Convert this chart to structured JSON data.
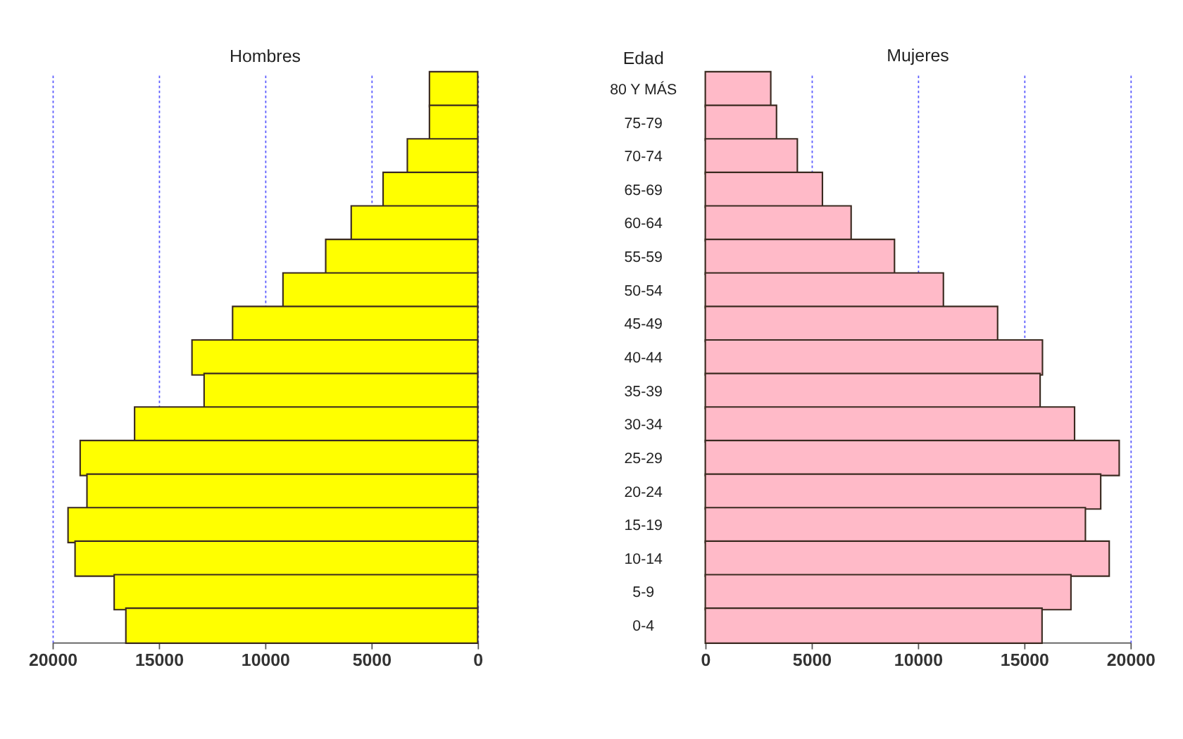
{
  "chart_data": [
    {
      "type": "bar",
      "orientation": "horizontal",
      "title": "Hombres",
      "categories": [
        null,
        null,
        null,
        null,
        null,
        null,
        null,
        null,
        null,
        null,
        null,
        null,
        null,
        null,
        null,
        null,
        null
      ],
      "series": [
        {
          "color": "#ffff00",
          "values": [
            2270,
            2270,
            3310,
            4450,
            5950,
            7150,
            9160,
            11530,
            13440,
            12870,
            16140,
            18700,
            18380,
            19270,
            18940,
            17100,
            16550
          ]
        }
      ],
      "xlim": [
        20000,
        0
      ],
      "xticks": [
        20000,
        15000,
        10000,
        5000,
        0
      ],
      "grid": "x",
      "tick_labels": "x"
    },
    {
      "type": "bar",
      "orientation": "horizontal",
      "title": "Mujeres",
      "ylabel": "Edad",
      "categories": [
        "80 Y MÁS",
        "75-79",
        "70-74",
        "65-69",
        "60-64",
        "55-59",
        "50-54",
        "45-49",
        "40-44",
        "35-39",
        "30-34",
        "25-29",
        "20-24",
        "15-19",
        "10-14",
        "5-9",
        "0-4"
      ],
      "series": [
        {
          "color": "#ffbac8",
          "values": [
            3080,
            3350,
            4330,
            5510,
            6860,
            8900,
            11200,
            13750,
            15860,
            15750,
            17370,
            19470,
            18600,
            17880,
            19000,
            17200,
            15840
          ]
        }
      ],
      "xlim": [
        0,
        20000
      ],
      "xticks": [
        0,
        5000,
        10000,
        15000,
        20000
      ],
      "grid": "x"
    }
  ]
}
